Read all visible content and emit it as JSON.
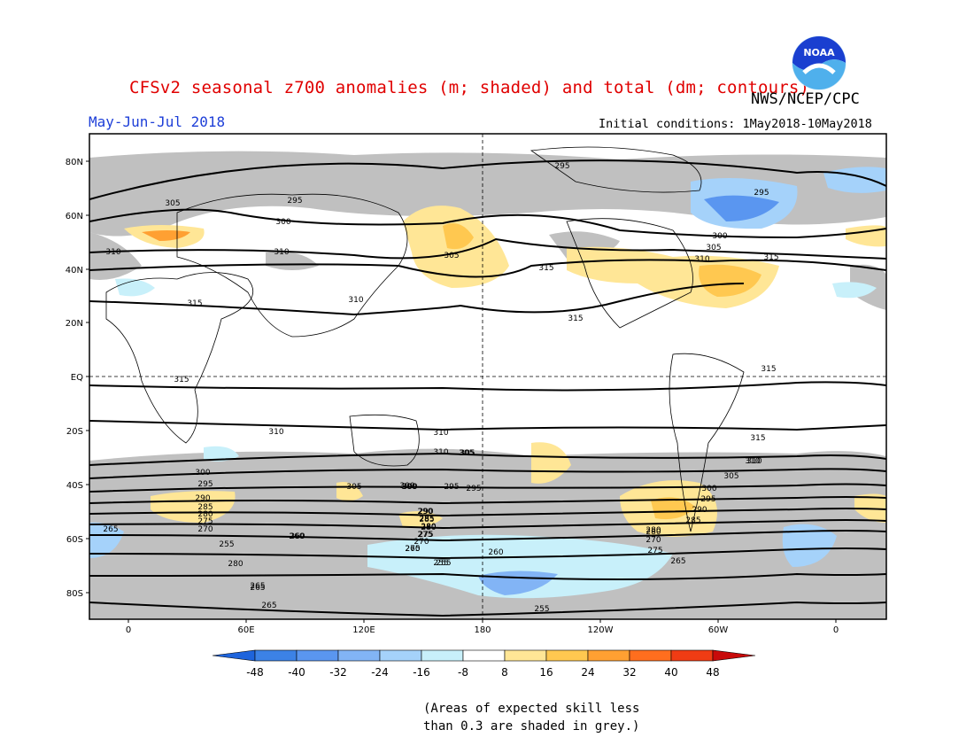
{
  "header": {
    "title": "CFSv2 seasonal z700 anomalies (m; shaded) and total (dm; contours)",
    "agency": "NWS/NCEP/CPC",
    "period": "May-Jun-Jul 2018",
    "initial_conditions": "Initial conditions: 1May2018-10May2018",
    "logo_text": "NOAA"
  },
  "map": {
    "lat_labels": [
      "80N",
      "60N",
      "40N",
      "20N",
      "EQ",
      "20S",
      "40S",
      "60S",
      "80S"
    ],
    "lon_labels": [
      "0",
      "60E",
      "120E",
      "180",
      "120W",
      "60W",
      "0"
    ],
    "contour_labels": [
      "295",
      "305",
      "295",
      "300",
      "310",
      "310",
      "315",
      "315",
      "310",
      "305",
      "300",
      "305",
      "315",
      "295",
      "300",
      "305",
      "310",
      "315",
      "315",
      "315",
      "310",
      "305",
      "300",
      "295",
      "290",
      "285",
      "280",
      "275",
      "270",
      "265",
      "260",
      "255",
      "280",
      "265",
      "265",
      "260",
      "255",
      "255",
      "265",
      "280",
      "270",
      "275",
      "280",
      "285",
      "290",
      "295",
      "300",
      "305",
      "310",
      "315",
      "310",
      "305",
      "300",
      "295",
      "290",
      "285",
      "280",
      "275",
      "270",
      "265",
      "260",
      "255",
      "265",
      "310",
      "310",
      "305",
      "300",
      "295",
      "290",
      "285",
      "280",
      "275",
      "270"
    ]
  },
  "colorbar": {
    "ticks": [
      "-48",
      "-40",
      "-32",
      "-24",
      "-16",
      "-8",
      "8",
      "16",
      "24",
      "32",
      "40",
      "48"
    ],
    "colors": [
      "#1e64dc",
      "#3c82e6",
      "#5a96f0",
      "#82b4f5",
      "#a5d2fa",
      "#c8f0fa",
      "#ffffff",
      "#ffe696",
      "#ffc850",
      "#ffa032",
      "#ff6e1e",
      "#f03c14",
      "#c80a0a"
    ]
  },
  "note": {
    "line1": "(Areas of expected skill less",
    "line2": "than 0.3 are shaded in grey.)"
  },
  "colors": {
    "title": "#e00000",
    "period": "#1e3fd8",
    "skill_grey": "#c0c0c0"
  }
}
